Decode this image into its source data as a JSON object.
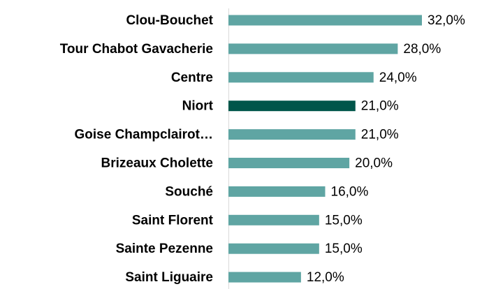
{
  "chart_data": {
    "type": "barh",
    "categories": [
      "Clou-Bouchet",
      "Tour Chabot Gavacherie",
      "Centre",
      "Niort",
      "Goise Champclairot…",
      "Brizeaux Cholette",
      "Souché",
      "Saint Florent",
      "Sainte Pezenne",
      "Saint Liguaire"
    ],
    "values": [
      32,
      28,
      24,
      21,
      21,
      20,
      16,
      15,
      15,
      12
    ],
    "value_labels": [
      "32,0%",
      "28,0%",
      "24,0%",
      "21,0%",
      "21,0%",
      "20,0%",
      "16,0%",
      "15,0%",
      "15,0%",
      "12,0%"
    ],
    "colors": [
      "#5fa5a3",
      "#5fa5a3",
      "#5fa5a3",
      "#00564a",
      "#5fa5a3",
      "#5fa5a3",
      "#5fa5a3",
      "#5fa5a3",
      "#5fa5a3",
      "#5fa5a3"
    ]
  }
}
